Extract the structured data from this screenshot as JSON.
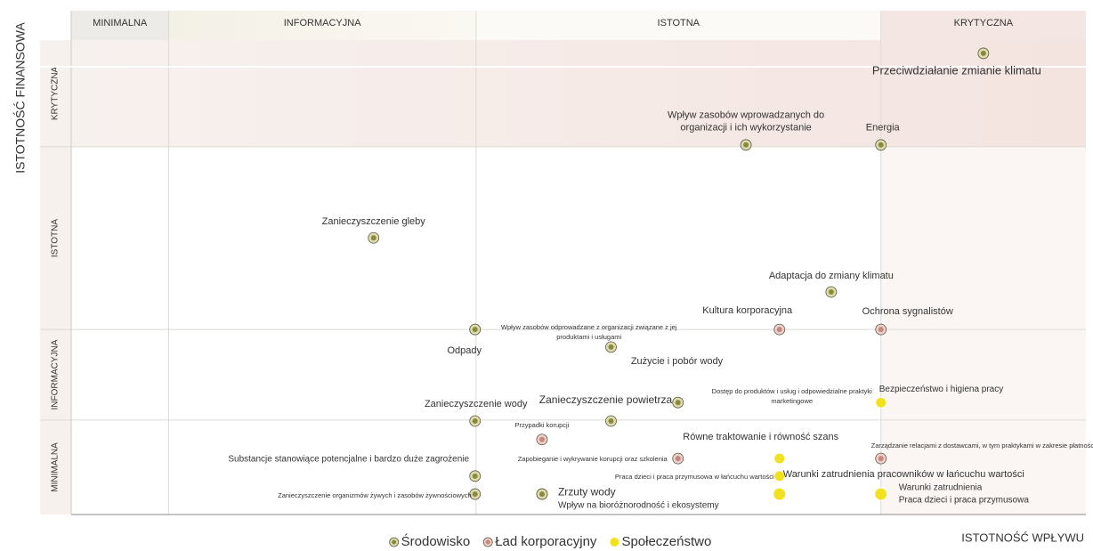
{
  "chart_data": {
    "type": "scatter",
    "ylabel": "ISTOTNOŚĆ FINANSOWA",
    "xlabel": "ISTOTNOŚĆ WPŁYWU",
    "xlim": [
      0,
      100
    ],
    "ylim": [
      0,
      100
    ],
    "xbands": [
      {
        "label": "MINIMALNA",
        "range": [
          0,
          9.6
        ]
      },
      {
        "label": "INFORMACYJNA",
        "range": [
          9.6,
          39.9
        ]
      },
      {
        "label": "ISTOTNA",
        "range": [
          39.9,
          79.8
        ]
      },
      {
        "label": "KRYTYCZNA",
        "range": [
          79.8,
          100
        ]
      }
    ],
    "ybands": [
      {
        "label": "MINIMALNA",
        "range": [
          0,
          19.9
        ]
      },
      {
        "label": "INFORMACYJNA",
        "range": [
          19.9,
          39.0
        ]
      },
      {
        "label": "ISTOTNA",
        "range": [
          39.0,
          77.5
        ]
      },
      {
        "label": "KRYTYCZNA",
        "range": [
          77.5,
          100
        ]
      }
    ],
    "series": [
      {
        "name": "Środowisko",
        "color": "#8a8a3c",
        "labels": [
          [
            "Przeciwdziałanie zmianie klimatu"
          ],
          [
            "Wpływ zasobów wprowadzanych do",
            "organizacji i ich wykorzystanie"
          ],
          [
            "Energia"
          ],
          [
            "Zanieczyszczenie gleby"
          ],
          [
            "Adaptacja do zmiany klimatu"
          ],
          [
            "Wpływ zasobów odprowadzane z organizacji związane z jej",
            "produktami i usługami"
          ],
          [
            "Odpady"
          ],
          [
            "Zużycie i pobór wody"
          ],
          [
            "Zanieczyszczenie powietrza"
          ],
          [
            "Dostęp do produktów i usług i odpowiedzialne praktyki",
            "marketingowe"
          ],
          [
            "Zanieczyszczenie wody"
          ],
          [
            "Substancje stanowiące potencjalne i bardzo duże zagrożenie"
          ],
          [
            "Zanieczyszczenie organizmów żywych i zasobów żywnościowych"
          ],
          [
            "Zrzuty wody"
          ],
          [
            "Wpływ na bioróżnorodność i ekosystemy"
          ]
        ],
        "x": [
          89.9,
          66.5,
          79.8,
          29.8,
          74.9,
          39.8,
          39.8,
          53.2,
          53.2,
          59.8,
          39.8,
          39.8,
          39.8,
          46.4,
          46.4
        ],
        "y": [
          97.2,
          77.9,
          77.9,
          58.3,
          46.9,
          39.0,
          39.0,
          35.3,
          19.7,
          23.6,
          19.7,
          8.1,
          4.3,
          4.3,
          4.3
        ]
      },
      {
        "name": "Ład korporacyjny",
        "color": "#c8867c",
        "labels": [
          [
            "Kultura korporacyjna"
          ],
          [
            "Ochrona sygnalistów"
          ],
          [
            "Przypadki korupcji"
          ],
          [
            "Zapobieganie i wykrywanie korupcji oraz szkolenia"
          ],
          [
            "Zarządzanie relacjami z dostawcami, w tym praktykami w zakresie płatności"
          ]
        ],
        "x": [
          69.8,
          79.8,
          46.4,
          59.8,
          79.8
        ],
        "y": [
          39.0,
          39.0,
          15.8,
          11.8,
          11.8
        ]
      },
      {
        "name": "Społeczeństwo",
        "color": "#f2e21e",
        "labels": [
          [
            "Bezpieczeństwo i higiena pracy"
          ],
          [
            "Równe traktowanie i równość szans"
          ],
          [
            "Praca dzieci i praca przymusowa w łańcuchu wartości"
          ],
          [
            "Warunki zatrudnienia pracowników w łańcuchu wartości"
          ],
          [
            "Warunki zatrudnienia",
            "Praca dzieci i praca przymusowa"
          ]
        ],
        "x": [
          79.8,
          69.8,
          69.8,
          69.8,
          79.8
        ],
        "y": [
          23.6,
          11.8,
          8.1,
          4.3,
          4.3
        ]
      }
    ]
  }
}
